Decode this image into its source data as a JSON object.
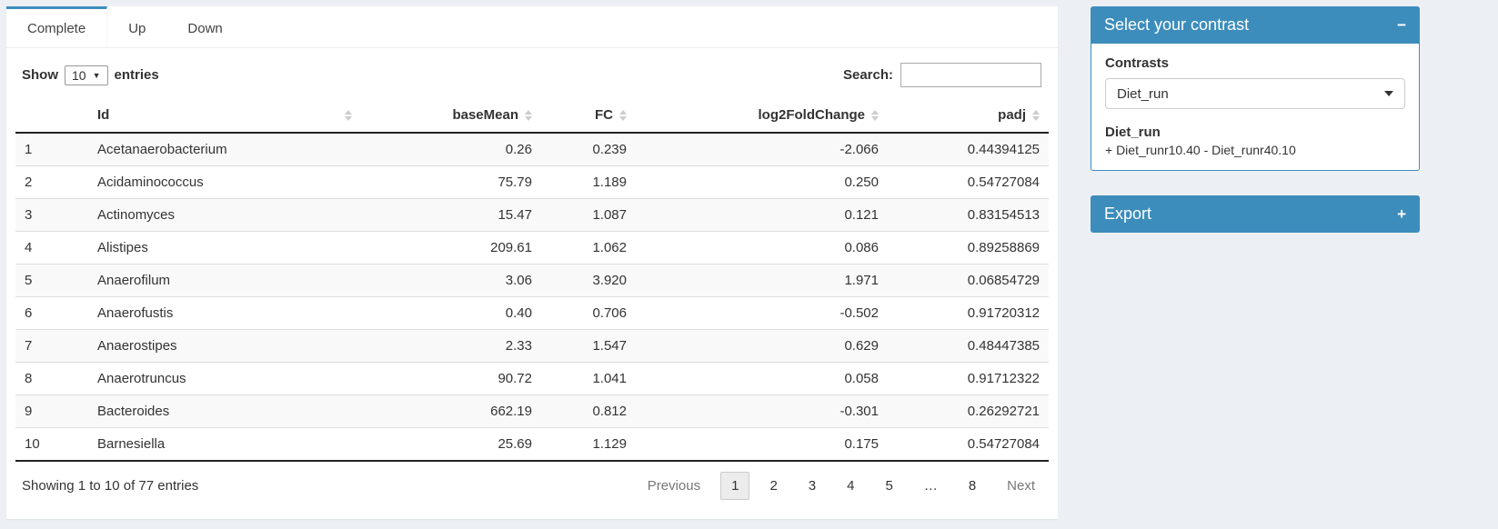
{
  "colors": {
    "primary": "#3c8dbc",
    "page_bg": "#ecf0f5"
  },
  "tabs": [
    {
      "label": "Complete",
      "active": true
    },
    {
      "label": "Up",
      "active": false
    },
    {
      "label": "Down",
      "active": false
    }
  ],
  "controls": {
    "show_label": "Show",
    "page_length": "10",
    "entries_label": "entries",
    "search_label": "Search:",
    "search_value": ""
  },
  "table": {
    "columns": [
      "Id",
      "baseMean",
      "FC",
      "log2FoldChange",
      "padj"
    ],
    "rows": [
      {
        "num": "1",
        "id": "Acetanaerobacterium",
        "basemean": "0.26",
        "fc": "0.239",
        "log2fc": "-2.066",
        "padj": "0.44394125"
      },
      {
        "num": "2",
        "id": "Acidaminococcus",
        "basemean": "75.79",
        "fc": "1.189",
        "log2fc": "0.250",
        "padj": "0.54727084"
      },
      {
        "num": "3",
        "id": "Actinomyces",
        "basemean": "15.47",
        "fc": "1.087",
        "log2fc": "0.121",
        "padj": "0.83154513"
      },
      {
        "num": "4",
        "id": "Alistipes",
        "basemean": "209.61",
        "fc": "1.062",
        "log2fc": "0.086",
        "padj": "0.89258869"
      },
      {
        "num": "5",
        "id": "Anaerofilum",
        "basemean": "3.06",
        "fc": "3.920",
        "log2fc": "1.971",
        "padj": "0.06854729"
      },
      {
        "num": "6",
        "id": "Anaerofustis",
        "basemean": "0.40",
        "fc": "0.706",
        "log2fc": "-0.502",
        "padj": "0.91720312"
      },
      {
        "num": "7",
        "id": "Anaerostipes",
        "basemean": "2.33",
        "fc": "1.547",
        "log2fc": "0.629",
        "padj": "0.48447385"
      },
      {
        "num": "8",
        "id": "Anaerotruncus",
        "basemean": "90.72",
        "fc": "1.041",
        "log2fc": "0.058",
        "padj": "0.91712322"
      },
      {
        "num": "9",
        "id": "Bacteroides",
        "basemean": "662.19",
        "fc": "0.812",
        "log2fc": "-0.301",
        "padj": "0.26292721"
      },
      {
        "num": "10",
        "id": "Barnesiella",
        "basemean": "25.69",
        "fc": "1.129",
        "log2fc": "0.175",
        "padj": "0.54727084"
      }
    ]
  },
  "footer": {
    "info": "Showing 1 to 10 of 77 entries",
    "pagination": [
      {
        "label": "Previous",
        "kind": "nav",
        "active": false
      },
      {
        "label": "1",
        "kind": "page",
        "active": true
      },
      {
        "label": "2",
        "kind": "page",
        "active": false
      },
      {
        "label": "3",
        "kind": "page",
        "active": false
      },
      {
        "label": "4",
        "kind": "page",
        "active": false
      },
      {
        "label": "5",
        "kind": "page",
        "active": false
      },
      {
        "label": "…",
        "kind": "ellipsis",
        "active": false
      },
      {
        "label": "8",
        "kind": "page",
        "active": false
      },
      {
        "label": "Next",
        "kind": "nav",
        "active": false
      }
    ]
  },
  "contrast_box": {
    "title": "Select your contrast",
    "collapse_icon": "−",
    "contrasts_label": "Contrasts",
    "selected_contrast": "Diet_run",
    "contrast_name": "Diet_run",
    "contrast_formula": "+ Diet_runr10.40 - Diet_runr40.10"
  },
  "export_box": {
    "title": "Export",
    "expand_icon": "+"
  }
}
